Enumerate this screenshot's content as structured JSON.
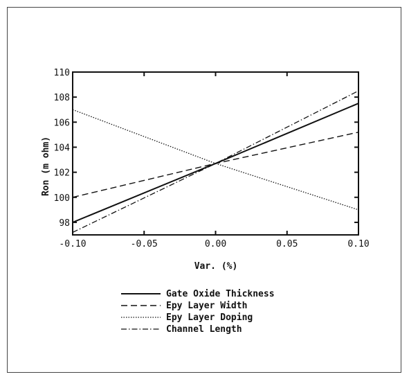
{
  "chart_data": {
    "type": "line",
    "xlabel": "Var. (%)",
    "ylabel": "Ron (m ohm)",
    "xlim": [
      -0.1,
      0.1
    ],
    "ylim": [
      97,
      110
    ],
    "x_ticks": [
      "-0.10",
      "-0.05",
      "0.00",
      "0.05",
      "0.10"
    ],
    "x_tick_values": [
      -0.1,
      -0.05,
      0.0,
      0.05,
      0.1
    ],
    "y_ticks": [
      "98",
      "100",
      "102",
      "104",
      "106",
      "108",
      "110"
    ],
    "y_tick_values": [
      98,
      100,
      102,
      104,
      106,
      108,
      110
    ],
    "grid": false,
    "legend_position": "bottom",
    "series": [
      {
        "name": "Gate Oxide Thickness",
        "x": [
          -0.1,
          0.0,
          0.1
        ],
        "y": [
          98.0,
          102.7,
          107.5
        ],
        "style": "solid"
      },
      {
        "name": "Epy Layer Width",
        "x": [
          -0.1,
          0.0,
          0.1
        ],
        "y": [
          100.0,
          102.7,
          105.2
        ],
        "style": "dashed"
      },
      {
        "name": "Epy Layer Doping",
        "x": [
          -0.1,
          0.0,
          0.1
        ],
        "y": [
          107.0,
          102.7,
          99.0
        ],
        "style": "dotted"
      },
      {
        "name": "Channel Length",
        "x": [
          -0.1,
          0.0,
          0.1
        ],
        "y": [
          97.2,
          102.7,
          108.5
        ],
        "style": "dashdot"
      }
    ]
  }
}
